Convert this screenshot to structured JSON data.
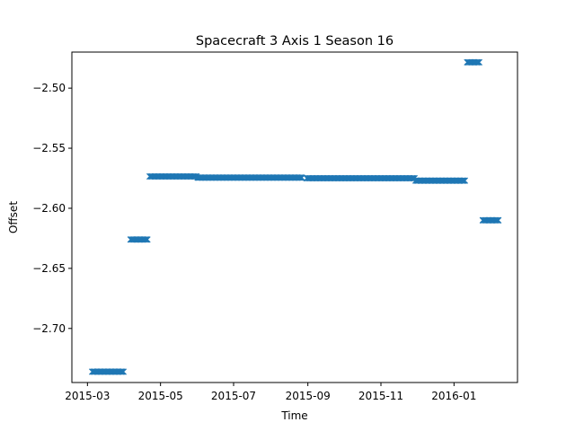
{
  "chart_data": {
    "type": "scatter",
    "title": "Spacecraft 3 Axis 1 Season 16",
    "xlabel": "Time",
    "ylabel": "Offset",
    "marker": "x",
    "color": "#1f77b4",
    "grid": false,
    "xlim": [
      "2015-02-16",
      "2016-02-23"
    ],
    "ylim": [
      -2.745,
      -2.47
    ],
    "xticks": [
      {
        "label": "2015-03",
        "date": "2015-03-01"
      },
      {
        "label": "2015-05",
        "date": "2015-05-01"
      },
      {
        "label": "2015-07",
        "date": "2015-07-01"
      },
      {
        "label": "2015-09",
        "date": "2015-09-01"
      },
      {
        "label": "2015-11",
        "date": "2015-11-01"
      },
      {
        "label": "2016-01",
        "date": "2016-01-01"
      }
    ],
    "yticks": [
      {
        "label": "−2.50",
        "value": -2.5
      },
      {
        "label": "−2.55",
        "value": -2.55
      },
      {
        "label": "−2.60",
        "value": -2.6
      },
      {
        "label": "−2.65",
        "value": -2.65
      },
      {
        "label": "−2.70",
        "value": -2.7
      }
    ],
    "segments": [
      {
        "start": "2015-03-05",
        "end": "2015-03-31",
        "y": -2.736
      },
      {
        "start": "2015-04-06",
        "end": "2015-04-20",
        "y": -2.626
      },
      {
        "start": "2015-04-22",
        "end": "2015-05-31",
        "y": -2.5735
      },
      {
        "start": "2015-06-01",
        "end": "2015-08-27",
        "y": -2.5745
      },
      {
        "start": "2015-08-31",
        "end": "2015-09-10",
        "y": -2.575
      },
      {
        "start": "2015-09-11",
        "end": "2015-11-29",
        "y": -2.575
      },
      {
        "start": "2015-11-30",
        "end": "2016-01-10",
        "y": -2.577
      },
      {
        "start": "2016-01-12",
        "end": "2016-01-22",
        "y": -2.4785
      },
      {
        "start": "2016-01-25",
        "end": "2016-02-07",
        "y": -2.61
      }
    ]
  }
}
